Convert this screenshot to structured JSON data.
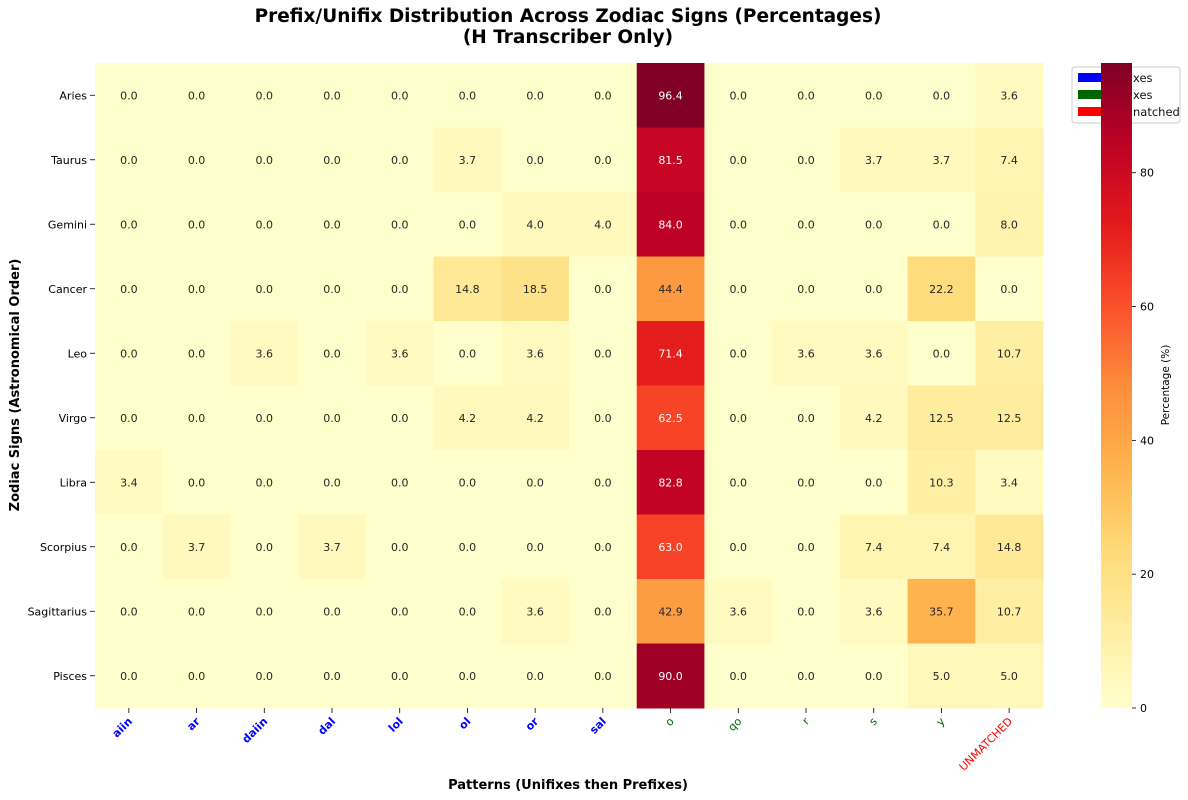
{
  "chart_data": {
    "type": "heatmap",
    "title": "Prefix/Unifix Distribution Across Zodiac Signs (Percentages)",
    "subtitle": "(H Transcriber Only)",
    "xlabel": "Patterns (Unifixes then Prefixes)",
    "ylabel": "Zodiac Signs (Astronomical Order)",
    "colorbar_label": "Percentage (%)",
    "colorbar_ticks": [
      0,
      20,
      40,
      60,
      80
    ],
    "value_range": [
      0,
      96.4
    ],
    "colormap": "YlOrRd",
    "rows": [
      "Aries",
      "Taurus",
      "Gemini",
      "Cancer",
      "Leo",
      "Virgo",
      "Libra",
      "Scorpius",
      "Sagittarius",
      "Pisces"
    ],
    "columns": [
      {
        "label": "aiin",
        "group": "unifix",
        "color": "#0000ff"
      },
      {
        "label": "ar",
        "group": "unifix",
        "color": "#0000ff"
      },
      {
        "label": "daiin",
        "group": "unifix",
        "color": "#0000ff"
      },
      {
        "label": "dal",
        "group": "unifix",
        "color": "#0000ff"
      },
      {
        "label": "lol",
        "group": "unifix",
        "color": "#0000ff"
      },
      {
        "label": "ol",
        "group": "unifix",
        "color": "#0000ff"
      },
      {
        "label": "or",
        "group": "unifix",
        "color": "#0000ff"
      },
      {
        "label": "sal",
        "group": "unifix",
        "color": "#0000ff"
      },
      {
        "label": "o",
        "group": "prefix",
        "color": "#006400"
      },
      {
        "label": "qo",
        "group": "prefix",
        "color": "#006400"
      },
      {
        "label": "r",
        "group": "prefix",
        "color": "#006400"
      },
      {
        "label": "s",
        "group": "prefix",
        "color": "#006400"
      },
      {
        "label": "y",
        "group": "prefix",
        "color": "#006400"
      },
      {
        "label": "UNMATCHED",
        "group": "unmatched",
        "color": "#ff0000"
      }
    ],
    "values": [
      [
        0.0,
        0.0,
        0.0,
        0.0,
        0.0,
        0.0,
        0.0,
        0.0,
        96.4,
        0.0,
        0.0,
        0.0,
        0.0,
        3.6
      ],
      [
        0.0,
        0.0,
        0.0,
        0.0,
        0.0,
        3.7,
        0.0,
        0.0,
        81.5,
        0.0,
        0.0,
        3.7,
        3.7,
        7.4
      ],
      [
        0.0,
        0.0,
        0.0,
        0.0,
        0.0,
        0.0,
        4.0,
        4.0,
        84.0,
        0.0,
        0.0,
        0.0,
        0.0,
        8.0
      ],
      [
        0.0,
        0.0,
        0.0,
        0.0,
        0.0,
        14.8,
        18.5,
        0.0,
        44.4,
        0.0,
        0.0,
        0.0,
        22.2,
        0.0
      ],
      [
        0.0,
        0.0,
        3.6,
        0.0,
        3.6,
        0.0,
        3.6,
        0.0,
        71.4,
        0.0,
        3.6,
        3.6,
        0.0,
        10.7
      ],
      [
        0.0,
        0.0,
        0.0,
        0.0,
        0.0,
        4.2,
        4.2,
        0.0,
        62.5,
        0.0,
        0.0,
        4.2,
        12.5,
        12.5
      ],
      [
        3.4,
        0.0,
        0.0,
        0.0,
        0.0,
        0.0,
        0.0,
        0.0,
        82.8,
        0.0,
        0.0,
        0.0,
        10.3,
        3.4
      ],
      [
        0.0,
        3.7,
        0.0,
        3.7,
        0.0,
        0.0,
        0.0,
        0.0,
        63.0,
        0.0,
        0.0,
        7.4,
        7.4,
        14.8
      ],
      [
        0.0,
        0.0,
        0.0,
        0.0,
        0.0,
        0.0,
        3.6,
        0.0,
        42.9,
        3.6,
        0.0,
        3.6,
        35.7,
        10.7
      ],
      [
        0.0,
        0.0,
        0.0,
        0.0,
        0.0,
        0.0,
        0.0,
        0.0,
        90.0,
        0.0,
        0.0,
        0.0,
        5.0,
        5.0
      ]
    ],
    "legend": {
      "placement": "top-right",
      "visible_text": [
        "xes",
        "xes",
        "natched"
      ],
      "colors": [
        "#0000ff",
        "#006400",
        "#ff0000"
      ]
    }
  }
}
